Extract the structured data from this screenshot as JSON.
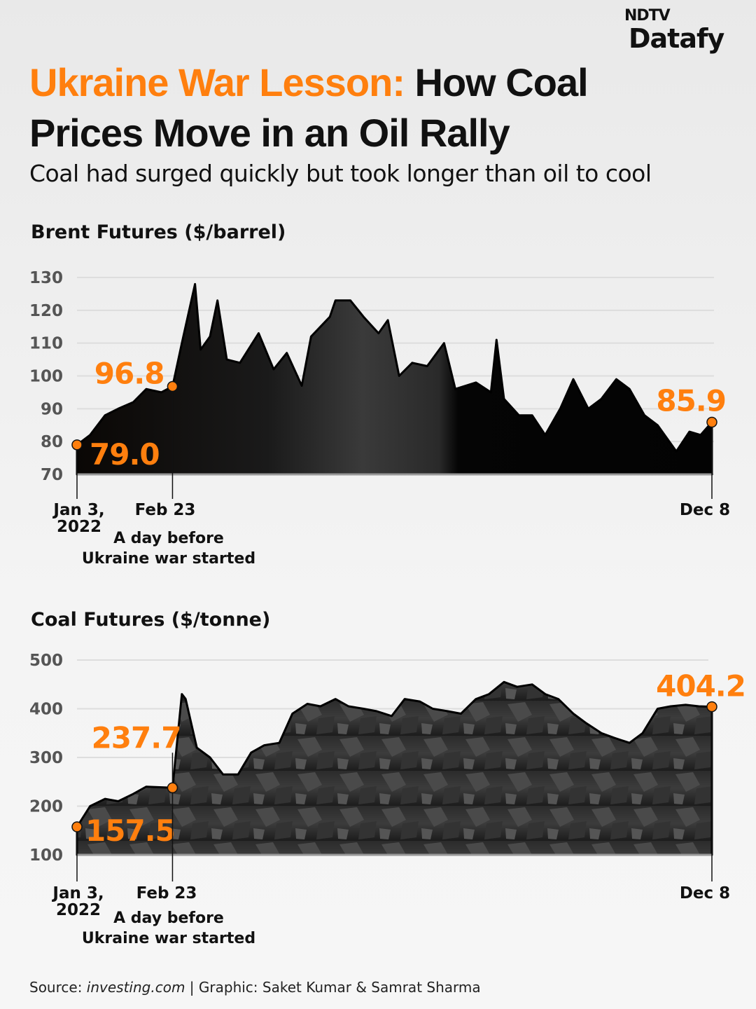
{
  "header": {
    "title_highlight": "Ukraine War Lesson:",
    "title_rest": " How Coal Prices Move in an Oil Rally",
    "subtitle": "Coal had surged quickly but took longer than oil to cool",
    "logo": {
      "top": "NDTV",
      "bottom": "Datafy"
    }
  },
  "colors": {
    "accent": "#ff7f0e",
    "area": "#0a0a0a",
    "grid": "#dddddd"
  },
  "chart_data": [
    {
      "type": "area",
      "title": "Brent Futures ($/barrel)",
      "ylim": [
        70,
        130
      ],
      "yticks": [
        "70",
        "80",
        "90",
        "100",
        "110",
        "120",
        "130"
      ],
      "grid": true,
      "x_labels": {
        "start": "Jan 3,",
        "start_year": "2022",
        "mid": "Feb 23",
        "end": "Dec 8"
      },
      "annotation": {
        "line1": "A day before",
        "line2": "Ukraine war started"
      },
      "highlights": [
        {
          "date": "2022-01-03",
          "value": 79.0,
          "label": "79.0"
        },
        {
          "date": "2022-02-23",
          "value": 96.8,
          "label": "96.8"
        },
        {
          "date": "2022-12-08",
          "value": 85.9,
          "label": "85.9"
        }
      ],
      "x": [
        "2022-01-03",
        "2022-01-10",
        "2022-01-18",
        "2022-01-25",
        "2022-02-02",
        "2022-02-09",
        "2022-02-17",
        "2022-02-23",
        "2022-02-28",
        "2022-03-07",
        "2022-03-10",
        "2022-03-15",
        "2022-03-19",
        "2022-03-24",
        "2022-03-31",
        "2022-04-10",
        "2022-04-18",
        "2022-04-25",
        "2022-05-03",
        "2022-05-08",
        "2022-05-18",
        "2022-05-21",
        "2022-05-29",
        "2022-06-05",
        "2022-06-13",
        "2022-06-18",
        "2022-06-24",
        "2022-07-01",
        "2022-07-09",
        "2022-07-18",
        "2022-07-24",
        "2022-08-04",
        "2022-08-12",
        "2022-08-15",
        "2022-08-19",
        "2022-08-27",
        "2022-09-03",
        "2022-09-10",
        "2022-09-18",
        "2022-09-25",
        "2022-10-03",
        "2022-10-10",
        "2022-10-18",
        "2022-10-25",
        "2022-11-02",
        "2022-11-09",
        "2022-11-19",
        "2022-11-26",
        "2022-12-02",
        "2022-12-08"
      ],
      "values": [
        79.0,
        82,
        88,
        90,
        92,
        96,
        95,
        96.8,
        110,
        128,
        108,
        112,
        123,
        105,
        104,
        113,
        102,
        107,
        97,
        112,
        118,
        123,
        123,
        118,
        113,
        117,
        100,
        104,
        103,
        110,
        96,
        98,
        95,
        111,
        93,
        88,
        88,
        82,
        90,
        99,
        90,
        93,
        99,
        96,
        88,
        85,
        77,
        83,
        82,
        85.9
      ]
    },
    {
      "type": "area",
      "title": "Coal Futures ($/tonne)",
      "ylim": [
        100,
        500
      ],
      "yticks": [
        "100",
        "200",
        "300",
        "400",
        "500"
      ],
      "grid": true,
      "x_labels": {
        "start": "Jan 3,",
        "start_year": "2022",
        "mid": "Feb 23",
        "end": "Dec 8"
      },
      "annotation": {
        "line1": "A day before",
        "line2": "Ukraine war started"
      },
      "highlights": [
        {
          "date": "2022-01-03",
          "value": 157.5,
          "label": "157.5"
        },
        {
          "date": "2022-02-23",
          "value": 237.7,
          "label": "237.7"
        },
        {
          "date": "2022-12-08",
          "value": 404.2,
          "label": "404.2"
        }
      ],
      "x": [
        "2022-01-03",
        "2022-01-10",
        "2022-01-18",
        "2022-01-25",
        "2022-02-02",
        "2022-02-09",
        "2022-02-23",
        "2022-02-28",
        "2022-03-02",
        "2022-03-08",
        "2022-03-15",
        "2022-03-22",
        "2022-03-30",
        "2022-04-06",
        "2022-04-13",
        "2022-04-21",
        "2022-04-28",
        "2022-05-06",
        "2022-05-13",
        "2022-05-21",
        "2022-05-28",
        "2022-06-05",
        "2022-06-12",
        "2022-06-20",
        "2022-06-27",
        "2022-07-05",
        "2022-07-12",
        "2022-07-20",
        "2022-07-27",
        "2022-08-04",
        "2022-08-11",
        "2022-08-19",
        "2022-08-26",
        "2022-09-03",
        "2022-09-10",
        "2022-09-17",
        "2022-09-25",
        "2022-10-02",
        "2022-10-10",
        "2022-10-17",
        "2022-10-25",
        "2022-11-01",
        "2022-11-09",
        "2022-11-16",
        "2022-11-24",
        "2022-12-01",
        "2022-12-08"
      ],
      "values": [
        157.5,
        200,
        215,
        210,
        225,
        240,
        237.7,
        430,
        420,
        320,
        300,
        265,
        265,
        310,
        325,
        330,
        390,
        410,
        405,
        420,
        405,
        400,
        395,
        385,
        420,
        415,
        400,
        395,
        390,
        420,
        430,
        455,
        445,
        450,
        430,
        420,
        390,
        370,
        350,
        340,
        330,
        350,
        400,
        405,
        408,
        405,
        404.2
      ]
    }
  ],
  "footer": {
    "source_label": "Source: ",
    "source_site": "investing.com",
    "credit": " | Graphic: Saket Kumar & Samrat Sharma"
  }
}
